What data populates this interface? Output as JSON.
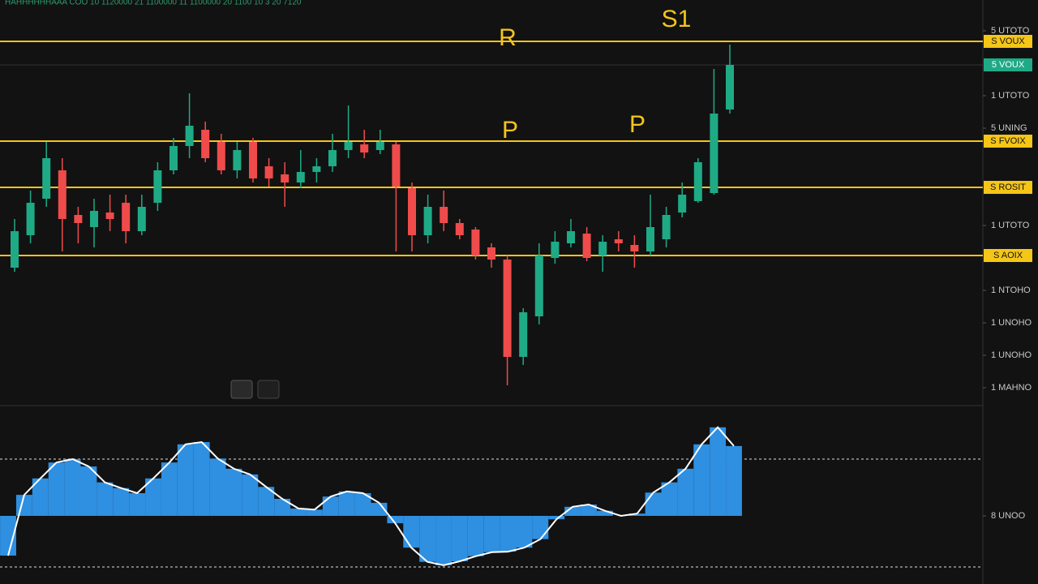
{
  "header": "HAHHHHHHAAA COO 10 1120000 21 1100000 11 1100000 20 1100 10 3 20 7120",
  "chart_data": [
    {
      "type": "candlestick",
      "up_color": "#1faa86",
      "down_color": "#ef4b4b",
      "level_color": "#f5c518",
      "ylim": [
        0,
        100
      ],
      "yticks": [
        {
          "value": 92.4,
          "label": "5 UTOTO"
        },
        {
          "value": 76.4,
          "label": "1 UTOTO"
        },
        {
          "value": 68.4,
          "label": "5 UNING"
        },
        {
          "value": 44.4,
          "label": "1 UTOTO"
        },
        {
          "value": 28.4,
          "label": "1 NTOHO"
        },
        {
          "value": 20.4,
          "label": "1 UNOHO"
        },
        {
          "value": 12.4,
          "label": "1 UNOHO"
        },
        {
          "value": 4.4,
          "label": "1 MAHNO"
        }
      ],
      "last_price": {
        "value": 84,
        "label": "5 VOUX"
      },
      "levels": [
        {
          "value": 89.8,
          "label": "S VOUX"
        },
        {
          "value": 65.2,
          "label": "S FVOIX"
        },
        {
          "value": 53.8,
          "label": "S ROSIT"
        },
        {
          "value": 37,
          "label": "S AOIX"
        }
      ],
      "annotations": [
        "R",
        "S1",
        "P",
        "P"
      ],
      "candles": [
        {
          "open": 34,
          "high": 46,
          "low": 33,
          "close": 43
        },
        {
          "open": 42,
          "high": 53,
          "low": 40,
          "close": 50
        },
        {
          "open": 51,
          "high": 65,
          "low": 49,
          "close": 61
        },
        {
          "open": 58,
          "high": 61,
          "low": 38,
          "close": 46
        },
        {
          "open": 47,
          "high": 49,
          "low": 40,
          "close": 45
        },
        {
          "open": 44,
          "high": 51,
          "low": 39,
          "close": 48
        },
        {
          "open": 47.6,
          "high": 52,
          "low": 43,
          "close": 46
        },
        {
          "open": 50,
          "high": 52,
          "low": 40,
          "close": 43
        },
        {
          "open": 43,
          "high": 52,
          "low": 42,
          "close": 49
        },
        {
          "open": 50,
          "high": 60,
          "low": 48,
          "close": 58
        },
        {
          "open": 58,
          "high": 66,
          "low": 57,
          "close": 64
        },
        {
          "open": 64,
          "high": 77,
          "low": 61,
          "close": 69
        },
        {
          "open": 68,
          "high": 70,
          "low": 60,
          "close": 61
        },
        {
          "open": 65,
          "high": 67,
          "low": 57,
          "close": 58
        },
        {
          "open": 58,
          "high": 65,
          "low": 56,
          "close": 63
        },
        {
          "open": 65,
          "high": 66,
          "low": 55,
          "close": 56
        },
        {
          "open": 59,
          "high": 61,
          "low": 54,
          "close": 56
        },
        {
          "open": 57,
          "high": 60,
          "low": 49,
          "close": 55
        },
        {
          "open": 55,
          "high": 63,
          "low": 53.6,
          "close": 57.6
        },
        {
          "open": 57.6,
          "high": 61,
          "low": 55,
          "close": 59
        },
        {
          "open": 59,
          "high": 67,
          "low": 57.6,
          "close": 63
        },
        {
          "open": 63,
          "high": 74,
          "low": 61,
          "close": 65
        },
        {
          "open": 64.4,
          "high": 68,
          "low": 61,
          "close": 62.4
        },
        {
          "open": 63,
          "high": 68,
          "low": 62,
          "close": 65
        },
        {
          "open": 64.4,
          "high": 65,
          "low": 38,
          "close": 54
        },
        {
          "open": 53.6,
          "high": 55,
          "low": 38,
          "close": 42
        },
        {
          "open": 42,
          "high": 52,
          "low": 40,
          "close": 49
        },
        {
          "open": 49,
          "high": 53,
          "low": 43,
          "close": 45
        },
        {
          "open": 45,
          "high": 46,
          "low": 41,
          "close": 42
        },
        {
          "open": 43.4,
          "high": 44,
          "low": 36,
          "close": 37
        },
        {
          "open": 39,
          "high": 40,
          "low": 34,
          "close": 36
        },
        {
          "open": 36,
          "high": 37,
          "low": 5,
          "close": 12
        },
        {
          "open": 12,
          "high": 24,
          "low": 10,
          "close": 23
        },
        {
          "open": 22,
          "high": 40,
          "low": 20,
          "close": 37
        },
        {
          "open": 36.4,
          "high": 43,
          "low": 35,
          "close": 40.4
        },
        {
          "open": 40,
          "high": 46,
          "low": 39,
          "close": 43
        },
        {
          "open": 42.4,
          "high": 44,
          "low": 35.6,
          "close": 36.4
        },
        {
          "open": 37,
          "high": 42,
          "low": 33,
          "close": 40.4
        },
        {
          "open": 41,
          "high": 43,
          "low": 38,
          "close": 40
        },
        {
          "open": 39.6,
          "high": 42,
          "low": 34,
          "close": 38
        },
        {
          "open": 38,
          "high": 52,
          "low": 37,
          "close": 44
        },
        {
          "open": 41,
          "high": 49,
          "low": 39,
          "close": 47
        },
        {
          "open": 47.6,
          "high": 55,
          "low": 46.4,
          "close": 52
        },
        {
          "open": 50.4,
          "high": 61,
          "low": 50,
          "close": 60
        },
        {
          "open": 52.4,
          "high": 83,
          "low": 52,
          "close": 72
        },
        {
          "open": 73,
          "high": 89,
          "low": 72,
          "close": 84
        }
      ]
    },
    {
      "type": "histogram",
      "color": "#2f8fe0",
      "line_color": "#ffffff",
      "ylim": [
        -1.2,
        1.8
      ],
      "yticks": [
        {
          "value": 0,
          "label": "8 UNOO"
        }
      ],
      "dotted": [
        1,
        -0.9
      ],
      "values": [
        -0.7,
        0.37,
        0.66,
        0.94,
        1,
        0.87,
        0.59,
        0.49,
        0.4,
        0.66,
        0.94,
        1.26,
        1.3,
        1.01,
        0.83,
        0.73,
        0.51,
        0.3,
        0.13,
        0.11,
        0.34,
        0.43,
        0.4,
        0.23,
        -0.13,
        -0.56,
        -0.81,
        -0.87,
        -0.8,
        -0.71,
        -0.64,
        -0.63,
        -0.56,
        -0.41,
        -0.06,
        0.16,
        0.2,
        0.09,
        0,
        0.04,
        0.41,
        0.59,
        0.83,
        1.26,
        1.56,
        1.23
      ]
    }
  ]
}
